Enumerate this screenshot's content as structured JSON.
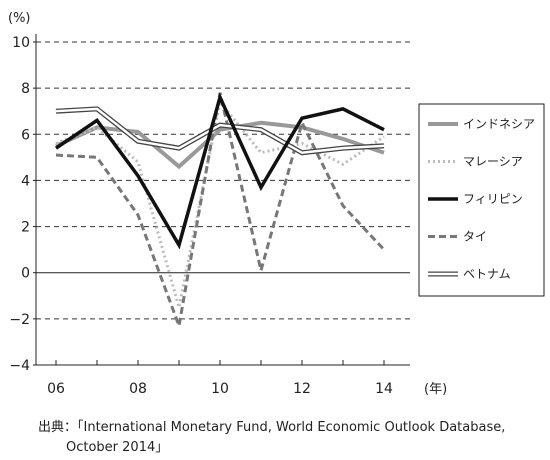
{
  "chart_data": {
    "type": "line",
    "ylabel": "(%)",
    "xlabel": "(年)",
    "ylim": [
      -4,
      10
    ],
    "yticks": [
      10,
      8,
      6,
      4,
      2,
      0,
      -2,
      -4
    ],
    "ytick_labels": [
      "10",
      "8",
      "6",
      "4",
      "2",
      "0",
      "−2",
      "−4"
    ],
    "xlim": [
      2006,
      2014
    ],
    "xticks": [
      2006,
      2008,
      2010,
      2012,
      2014
    ],
    "xtick_labels": [
      "06",
      "08",
      "10",
      "12",
      "14"
    ],
    "grid": "dashed horizontal at each y tick",
    "legend_position": "right",
    "x": [
      2006,
      2007,
      2008,
      2009,
      2010,
      2011,
      2012,
      2013,
      2014
    ],
    "series": [
      {
        "name": "インドネシア",
        "values": [
          5.5,
          6.3,
          6.1,
          4.6,
          6.2,
          6.5,
          6.3,
          5.8,
          5.2
        ],
        "color": "#999999",
        "style": "thick-solid"
      },
      {
        "name": "マレーシア",
        "values": [
          5.6,
          6.3,
          4.8,
          -1.5,
          7.4,
          5.2,
          5.6,
          4.7,
          5.9
        ],
        "color": "#bbbbbb",
        "style": "dotted"
      },
      {
        "name": "フィリピン",
        "values": [
          5.4,
          6.6,
          4.2,
          1.2,
          7.6,
          3.7,
          6.7,
          7.1,
          6.2
        ],
        "color": "#111111",
        "style": "thick-solid"
      },
      {
        "name": "タイ",
        "values": [
          5.1,
          5.0,
          2.5,
          -2.3,
          7.8,
          0.1,
          6.5,
          2.9,
          1.0
        ],
        "color": "#777777",
        "style": "dashed"
      },
      {
        "name": "ベトナム",
        "values": [
          7.0,
          7.1,
          5.7,
          5.4,
          6.4,
          6.2,
          5.2,
          5.4,
          5.5
        ],
        "color": "#444444",
        "style": "double"
      }
    ]
  },
  "source": {
    "line1": "出典：「International Monetary Fund, World Economic Outlook Database,",
    "line2": "October 2014」"
  }
}
